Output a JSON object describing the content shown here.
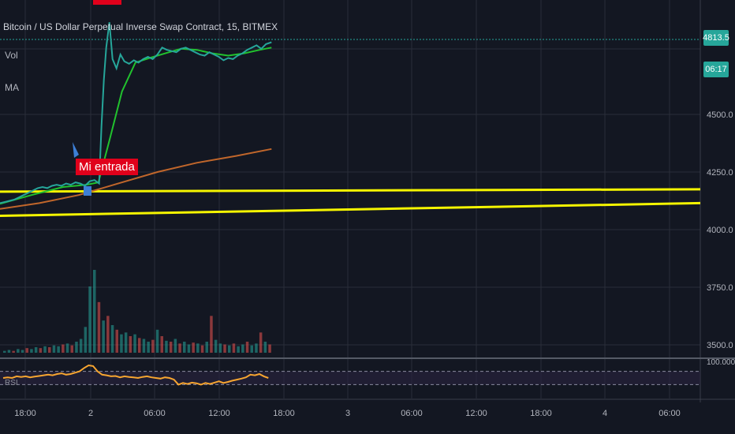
{
  "chart_title": "Bitcoin / US Dollar Perpetual Inverse Swap Contract, 15, BITMEX",
  "volume_label": "Vol",
  "ma_label": "MA",
  "rsi_label": "RSI",
  "annotation_label": "Mi entrada",
  "last_price": "4813.5",
  "countdown": "06:17",
  "colors": {
    "background": "#131722",
    "up": "#26a69a",
    "down": "#ef5350",
    "ma_fast": "#21c22e",
    "ma_slow": "#c0662b",
    "support": "#f5f500",
    "rsi": "#f7a530",
    "annotation": "#e0001b"
  },
  "chart_data": {
    "type": "line",
    "price_axis": {
      "range": [
        3450,
        4900
      ],
      "ticks": [
        {
          "value": 4500,
          "label": "4500.0"
        },
        {
          "value": 4250,
          "label": "4250.0"
        },
        {
          "value": 4000,
          "label": "4000.0"
        },
        {
          "value": 3750,
          "label": "3750.0"
        },
        {
          "value": 3500,
          "label": "3500.0"
        }
      ]
    },
    "time_axis": {
      "ticks": [
        "18:00",
        "2",
        "06:00",
        "12:00",
        "18:00",
        "3",
        "06:00",
        "12:00",
        "18:00",
        "4",
        "06:00"
      ]
    },
    "rsi_axis": {
      "range": [
        0,
        100
      ],
      "label": "100.0000",
      "levels": [
        70,
        30
      ]
    },
    "price_series": [
      {
        "t": 0.0,
        "v": 4115
      },
      {
        "t": 0.6,
        "v": 4120
      },
      {
        "t": 1.2,
        "v": 4125
      },
      {
        "t": 1.8,
        "v": 4130
      },
      {
        "t": 2.4,
        "v": 4140
      },
      {
        "t": 3.0,
        "v": 4150
      },
      {
        "t": 3.6,
        "v": 4160
      },
      {
        "t": 4.2,
        "v": 4170
      },
      {
        "t": 4.8,
        "v": 4180
      },
      {
        "t": 5.4,
        "v": 4185
      },
      {
        "t": 6.0,
        "v": 4180
      },
      {
        "t": 6.6,
        "v": 4190
      },
      {
        "t": 7.2,
        "v": 4195
      },
      {
        "t": 7.8,
        "v": 4190
      },
      {
        "t": 8.4,
        "v": 4200
      },
      {
        "t": 9.0,
        "v": 4195
      },
      {
        "t": 9.6,
        "v": 4205
      },
      {
        "t": 10.2,
        "v": 4200
      },
      {
        "t": 10.8,
        "v": 4190
      },
      {
        "t": 11.4,
        "v": 4210
      },
      {
        "t": 12.0,
        "v": 4215
      },
      {
        "t": 12.6,
        "v": 4200
      },
      {
        "t": 12.9,
        "v": 4450
      },
      {
        "t": 13.2,
        "v": 4650
      },
      {
        "t": 13.5,
        "v": 4790
      },
      {
        "t": 13.9,
        "v": 4900
      },
      {
        "t": 14.3,
        "v": 4740
      },
      {
        "t": 14.8,
        "v": 4700
      },
      {
        "t": 15.3,
        "v": 4760
      },
      {
        "t": 15.8,
        "v": 4730
      },
      {
        "t": 16.4,
        "v": 4720
      },
      {
        "t": 17.0,
        "v": 4735
      },
      {
        "t": 17.6,
        "v": 4725
      },
      {
        "t": 18.2,
        "v": 4740
      },
      {
        "t": 18.8,
        "v": 4750
      },
      {
        "t": 19.4,
        "v": 4740
      },
      {
        "t": 20.0,
        "v": 4760
      },
      {
        "t": 20.6,
        "v": 4790
      },
      {
        "t": 21.2,
        "v": 4780
      },
      {
        "t": 21.8,
        "v": 4775
      },
      {
        "t": 22.4,
        "v": 4770
      },
      {
        "t": 23.0,
        "v": 4785
      },
      {
        "t": 23.6,
        "v": 4790
      },
      {
        "t": 24.2,
        "v": 4780
      },
      {
        "t": 24.8,
        "v": 4770
      },
      {
        "t": 25.4,
        "v": 4760
      },
      {
        "t": 26.0,
        "v": 4755
      },
      {
        "t": 26.6,
        "v": 4770
      },
      {
        "t": 27.2,
        "v": 4760
      },
      {
        "t": 27.8,
        "v": 4750
      },
      {
        "t": 28.4,
        "v": 4735
      },
      {
        "t": 29.0,
        "v": 4745
      },
      {
        "t": 29.6,
        "v": 4740
      },
      {
        "t": 30.2,
        "v": 4755
      },
      {
        "t": 30.8,
        "v": 4765
      },
      {
        "t": 31.4,
        "v": 4780
      },
      {
        "t": 32.0,
        "v": 4790
      },
      {
        "t": 32.6,
        "v": 4800
      },
      {
        "t": 33.2,
        "v": 4785
      },
      {
        "t": 33.8,
        "v": 4805
      },
      {
        "t": 34.5,
        "v": 4813.5
      }
    ],
    "ma_fast": [
      {
        "t": 0.0,
        "v": 4112
      },
      {
        "t": 4.0,
        "v": 4150
      },
      {
        "t": 8.0,
        "v": 4185
      },
      {
        "t": 11.0,
        "v": 4195
      },
      {
        "t": 12.5,
        "v": 4205
      },
      {
        "t": 14.0,
        "v": 4400
      },
      {
        "t": 15.5,
        "v": 4600
      },
      {
        "t": 17.2,
        "v": 4725
      },
      {
        "t": 19.0,
        "v": 4745
      },
      {
        "t": 21.0,
        "v": 4765
      },
      {
        "t": 23.0,
        "v": 4785
      },
      {
        "t": 25.0,
        "v": 4780
      },
      {
        "t": 27.0,
        "v": 4765
      },
      {
        "t": 29.0,
        "v": 4755
      },
      {
        "t": 31.0,
        "v": 4765
      },
      {
        "t": 33.0,
        "v": 4780
      },
      {
        "t": 34.5,
        "v": 4790
      }
    ],
    "ma_slow": [
      {
        "t": 0.0,
        "v": 4090
      },
      {
        "t": 5.0,
        "v": 4115
      },
      {
        "t": 10.0,
        "v": 4150
      },
      {
        "t": 15.0,
        "v": 4200
      },
      {
        "t": 20.0,
        "v": 4250
      },
      {
        "t": 25.0,
        "v": 4290
      },
      {
        "t": 30.0,
        "v": 4320
      },
      {
        "t": 34.5,
        "v": 4350
      }
    ],
    "support_lines": [
      {
        "start": 4165,
        "end": 4175
      },
      {
        "start": 4060,
        "end": 4115
      }
    ],
    "volume": [
      2,
      3,
      2,
      4,
      3,
      5,
      4,
      6,
      5,
      7,
      6,
      8,
      7,
      9,
      10,
      8,
      12,
      15,
      28,
      72,
      90,
      55,
      35,
      40,
      30,
      25,
      20,
      22,
      18,
      20,
      16,
      15,
      12,
      14,
      25,
      18,
      13,
      12,
      15,
      10,
      12,
      9,
      11,
      10,
      8,
      12,
      40,
      14,
      10,
      9,
      8,
      10,
      7,
      9,
      12,
      8,
      10,
      22,
      12,
      9
    ],
    "volume_up": [
      true,
      true,
      false,
      true,
      true,
      false,
      true,
      true,
      false,
      true,
      false,
      true,
      true,
      false,
      true,
      false,
      true,
      true,
      true,
      true,
      true,
      false,
      true,
      false,
      true,
      false,
      true,
      true,
      false,
      true,
      false,
      true,
      true,
      false,
      true,
      false,
      true,
      false,
      true,
      false,
      true,
      true,
      false,
      true,
      false,
      true,
      false,
      true,
      true,
      false,
      true,
      false,
      true,
      true,
      false,
      true,
      true,
      false,
      true,
      false
    ],
    "rsi": [
      50,
      52,
      50,
      55,
      53,
      55,
      52,
      54,
      56,
      58,
      60,
      58,
      62,
      64,
      60,
      62,
      66,
      70,
      80,
      88,
      86,
      70,
      60,
      58,
      55,
      56,
      52,
      55,
      53,
      52,
      50,
      53,
      55,
      52,
      50,
      48,
      52,
      50,
      45,
      30,
      35,
      32,
      36,
      34,
      30,
      35,
      32,
      36,
      40,
      35,
      38,
      42,
      45,
      48,
      52,
      60,
      58,
      62,
      55,
      50
    ]
  }
}
